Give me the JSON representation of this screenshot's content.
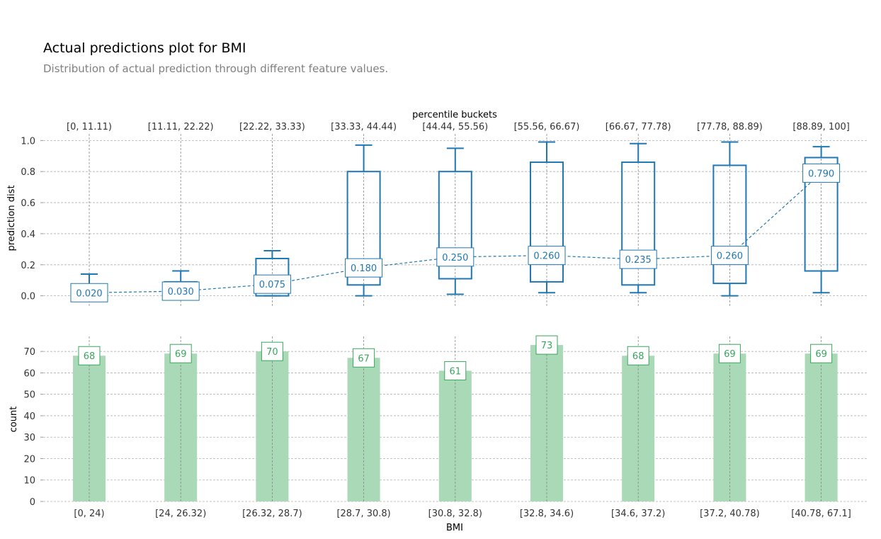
{
  "header": {
    "title": "Actual predictions plot for BMI",
    "subtitle": "Distribution of actual prediction through different feature values."
  },
  "colors": {
    "box": "#1f77b4",
    "bar": "#a9d9b6",
    "bar_label": "#3aa65c",
    "grid": "#b0b0b0",
    "tick_text": "#333333"
  },
  "chart_data": [
    {
      "type": "box",
      "title": "",
      "ylabel": "prediction dist",
      "top_axis_label": "percentile buckets",
      "ylim": [
        -0.07,
        1.07
      ],
      "yticks": [
        "0.0",
        "0.2",
        "0.4",
        "0.6",
        "0.8",
        "1.0"
      ],
      "top_categories": [
        "[0, 11.11)",
        "[11.11, 22.22)",
        "[22.22, 33.33)",
        "[33.33, 44.44)",
        "[44.44, 55.56)",
        "[55.56, 66.67)",
        "[66.67, 77.78)",
        "[77.78, 88.89)",
        "[88.89, 100]"
      ],
      "boxes": [
        {
          "min": 0.0,
          "q1": 0.0,
          "median": 0.02,
          "q3": 0.06,
          "max": 0.14
        },
        {
          "min": 0.0,
          "q1": 0.0,
          "median": 0.03,
          "q3": 0.09,
          "max": 0.16
        },
        {
          "min": 0.0,
          "q1": 0.0,
          "median": 0.075,
          "q3": 0.24,
          "max": 0.29
        },
        {
          "min": 0.0,
          "q1": 0.07,
          "median": 0.18,
          "q3": 0.8,
          "max": 0.97
        },
        {
          "min": 0.01,
          "q1": 0.11,
          "median": 0.25,
          "q3": 0.8,
          "max": 0.95
        },
        {
          "min": 0.02,
          "q1": 0.09,
          "median": 0.26,
          "q3": 0.86,
          "max": 0.99
        },
        {
          "min": 0.02,
          "q1": 0.07,
          "median": 0.235,
          "q3": 0.86,
          "max": 0.98
        },
        {
          "min": 0.0,
          "q1": 0.08,
          "median": 0.26,
          "q3": 0.84,
          "max": 0.99
        },
        {
          "min": 0.02,
          "q1": 0.16,
          "median": 0.79,
          "q3": 0.89,
          "max": 0.96
        }
      ],
      "median_labels": [
        "0.020",
        "0.030",
        "0.075",
        "0.180",
        "0.250",
        "0.260",
        "0.235",
        "0.260",
        "0.790"
      ]
    },
    {
      "type": "bar",
      "title": "",
      "xlabel": "BMI",
      "ylabel": "count",
      "ylim": [
        0,
        77
      ],
      "yticks": [
        "0",
        "10",
        "20",
        "30",
        "40",
        "50",
        "60",
        "70"
      ],
      "categories": [
        "[0, 24)",
        "[24, 26.32)",
        "[26.32, 28.7)",
        "[28.7, 30.8)",
        "[30.8, 32.8)",
        "[32.8, 34.6)",
        "[34.6, 37.2)",
        "[37.2, 40.78)",
        "[40.78, 67.1]"
      ],
      "values": [
        68,
        69,
        70,
        67,
        61,
        73,
        68,
        69,
        69
      ]
    }
  ]
}
